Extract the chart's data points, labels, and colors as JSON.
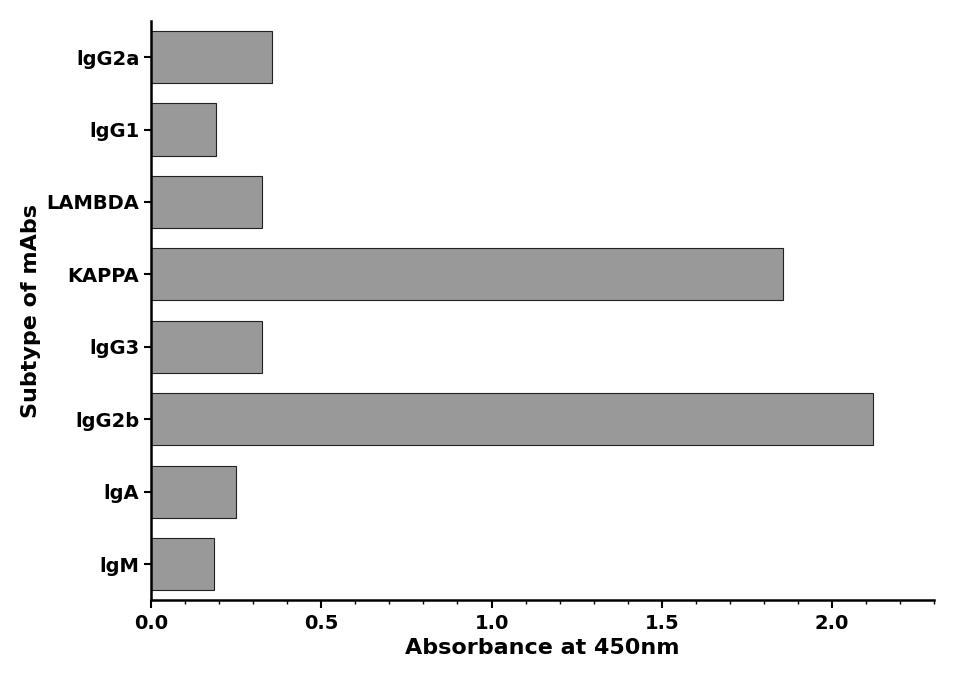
{
  "categories": [
    "lgM",
    "lgA",
    "lgG2b",
    "lgG3",
    "KAPPA",
    "LAMBDA",
    "lgG1",
    "lgG2a"
  ],
  "values": [
    0.185,
    0.25,
    2.12,
    0.325,
    1.855,
    0.325,
    0.19,
    0.355
  ],
  "bar_color": "#999999",
  "bar_edgecolor": "#222222",
  "xlabel": "Absorbance at 450nm",
  "ylabel": "Subtype of mAbs",
  "xlim": [
    0,
    2.3
  ],
  "xticks": [
    0.0,
    0.5,
    1.0,
    1.5,
    2.0
  ],
  "xtick_labels": [
    "0.0",
    "0.5",
    "1.0",
    "1.5",
    "2.0"
  ],
  "xlabel_fontsize": 16,
  "ylabel_fontsize": 16,
  "ytick_fontsize": 14,
  "xtick_fontsize": 14,
  "bar_height": 0.72,
  "figure_facecolor": "#ffffff"
}
